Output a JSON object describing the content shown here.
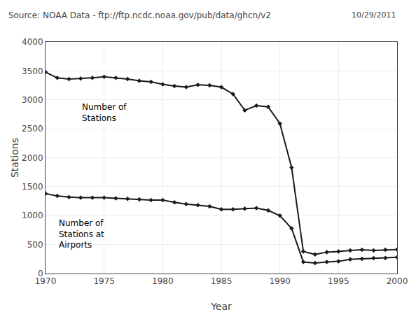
{
  "chart_data": {
    "type": "line",
    "title": "Source: NOAA Data - ftp://ftp.ncdc.noaa.gov/pub/data/ghcn/v2",
    "subtitle": "10/29/2011",
    "x_label": "Year",
    "y_label": "Stations",
    "x": [
      1970,
      1971,
      1972,
      1973,
      1974,
      1975,
      1976,
      1977,
      1978,
      1979,
      1980,
      1981,
      1982,
      1983,
      1984,
      1985,
      1986,
      1987,
      1988,
      1989,
      1990,
      1991,
      1992,
      1993,
      1994,
      1995,
      1996,
      1997,
      1998,
      1999,
      2000
    ],
    "series": [
      {
        "color": "#1a1a1a",
        "marker": "diamond",
        "line_style": "solid",
        "values": [
          3480,
          3380,
          3360,
          3370,
          3380,
          3400,
          3380,
          3360,
          3330,
          3310,
          3270,
          3240,
          3220,
          3260,
          3250,
          3220,
          3100,
          2820,
          2900,
          2880,
          2590,
          1830,
          380,
          330,
          370,
          380,
          400,
          410,
          400,
          410,
          415
        ]
      },
      {
        "color": "#1a1a1a",
        "marker": "diamond",
        "line_style": "solid",
        "values": [
          1380,
          1340,
          1320,
          1310,
          1310,
          1310,
          1300,
          1290,
          1280,
          1270,
          1270,
          1230,
          1200,
          1180,
          1160,
          1110,
          1110,
          1120,
          1130,
          1090,
          1000,
          780,
          200,
          180,
          200,
          210,
          245,
          255,
          265,
          270,
          280
        ]
      }
    ],
    "annotations": [
      {
        "text": "Number of\nStations",
        "x": 1973,
        "y": 2980
      },
      {
        "text": "Number of\nStations at\nAirports",
        "x": 1971,
        "y": 980
      }
    ],
    "xlim": [
      1970,
      2000
    ],
    "ylim": [
      0,
      4000
    ],
    "xticks": [
      1970,
      1975,
      1980,
      1985,
      1990,
      1995,
      2000
    ],
    "yticks": [
      0,
      500,
      1000,
      1500,
      2000,
      2500,
      3000,
      3500,
      4000
    ],
    "grid": true
  }
}
